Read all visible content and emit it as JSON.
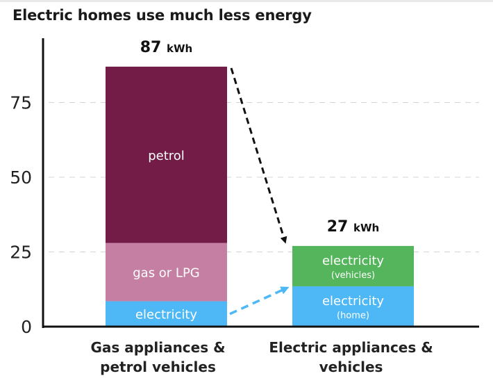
{
  "chart_data": {
    "type": "bar",
    "stacked": true,
    "title": "Electric homes use much less energy",
    "ylim": [
      0,
      95
    ],
    "yticks": [
      0,
      25,
      50,
      75
    ],
    "grid": true,
    "colors": {
      "petrol": "#731c48",
      "gas": "#c47fa3",
      "electricity_blue": "#4db8f5",
      "electricity_green": "#55b55c",
      "arrow_black": "#111111",
      "arrow_blue": "#4db8f5",
      "axis": "#111111",
      "grid": "#d4d4d4"
    },
    "bars": [
      {
        "category_lines": [
          "Gas appliances &",
          "petrol vehicles"
        ],
        "total_value": "87",
        "total_unit": "kWh",
        "segments": [
          {
            "label": "electricity",
            "sublabel": "",
            "value": 8.5,
            "color": "#4db8f5"
          },
          {
            "label": "gas or LPG",
            "sublabel": "",
            "value": 19.5,
            "color": "#c47fa3"
          },
          {
            "label": "petrol",
            "sublabel": "",
            "value": 59,
            "color": "#731c48"
          }
        ]
      },
      {
        "category_lines": [
          "Electric appliances &",
          "vehicles"
        ],
        "total_value": "27",
        "total_unit": "kWh",
        "segments": [
          {
            "label": "electricity",
            "sublabel": "(home)",
            "value": 13.5,
            "color": "#4db8f5"
          },
          {
            "label": "electricity",
            "sublabel": "(vehicles)",
            "value": 13.5,
            "color": "#55b55c"
          }
        ]
      }
    ]
  }
}
